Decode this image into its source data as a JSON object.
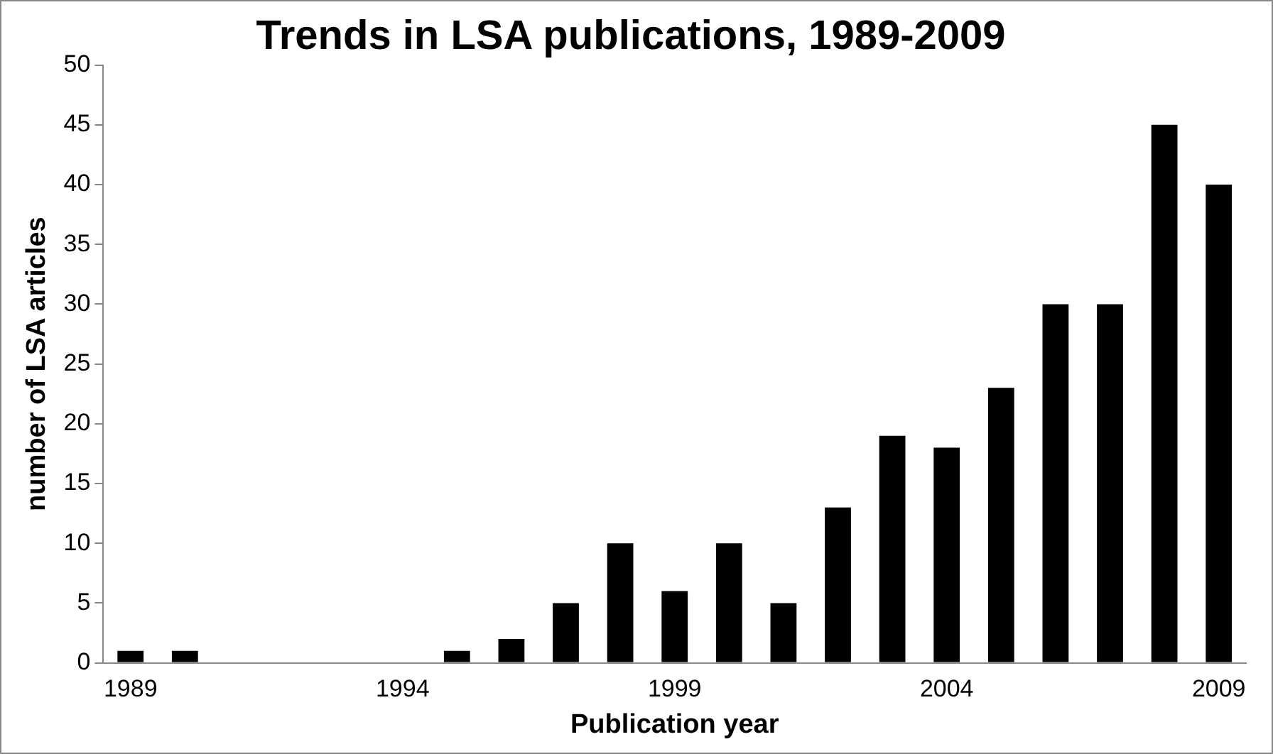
{
  "chart_data": {
    "type": "bar",
    "title": "Trends in LSA publications, 1989-2009",
    "xlabel": "Publication year",
    "ylabel": "number of LSA articles",
    "categories": [
      "1989",
      null,
      null,
      null,
      null,
      "1994",
      null,
      null,
      null,
      null,
      "1999",
      null,
      null,
      null,
      null,
      "2004",
      null,
      null,
      null,
      null,
      "2009"
    ],
    "values": [
      1,
      1,
      0,
      0,
      0,
      0,
      1,
      2,
      5,
      10,
      6,
      10,
      5,
      13,
      19,
      18,
      23,
      30,
      30,
      45,
      40
    ],
    "color": "#000000",
    "ylim": [
      0,
      50
    ],
    "yticks": [
      0,
      5,
      10,
      15,
      20,
      25,
      30,
      35,
      40,
      45,
      50
    ],
    "grid": false,
    "legend": false
  }
}
